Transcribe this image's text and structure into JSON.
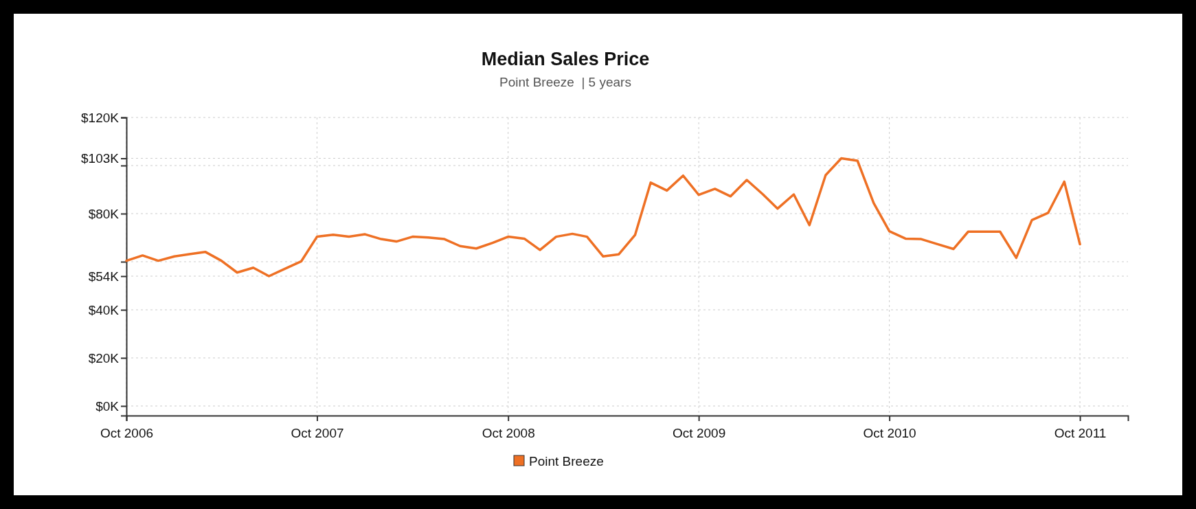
{
  "chart_data": {
    "type": "line",
    "title": "Median Sales Price",
    "subtitle": "Point Breeze  | 5 years",
    "x": [
      "2006-10",
      "2006-11",
      "2006-12",
      "2007-01",
      "2007-02",
      "2007-03",
      "2007-04",
      "2007-05",
      "2007-06",
      "2007-07",
      "2007-08",
      "2007-09",
      "2007-10",
      "2007-11",
      "2007-12",
      "2008-01",
      "2008-02",
      "2008-03",
      "2008-04",
      "2008-05",
      "2008-06",
      "2008-07",
      "2008-08",
      "2008-09",
      "2008-10",
      "2008-11",
      "2008-12",
      "2009-01",
      "2009-02",
      "2009-03",
      "2009-04",
      "2009-05",
      "2009-06",
      "2009-07",
      "2009-08",
      "2009-09",
      "2009-10",
      "2009-11",
      "2009-12",
      "2010-01",
      "2010-02",
      "2010-03",
      "2010-04",
      "2010-05",
      "2010-06",
      "2010-07",
      "2010-08",
      "2010-09",
      "2010-10",
      "2010-11",
      "2010-12",
      "2011-01",
      "2011-02",
      "2011-03",
      "2011-04",
      "2011-05",
      "2011-06",
      "2011-07",
      "2011-08",
      "2011-09",
      "2011-10"
    ],
    "series": [
      {
        "name": "Point Breeze",
        "color": "#ee7024",
        "values": [
          60.4,
          62.6,
          60.4,
          62.2,
          63.2,
          64.1,
          60.4,
          55.5,
          57.5,
          54,
          57.1,
          60.2,
          70.4,
          71.2,
          70.4,
          71.4,
          69.4,
          68.4,
          70.4,
          70.1,
          69.4,
          66.5,
          65.5,
          67.8,
          70.4,
          69.6,
          64.9,
          70.4,
          71.6,
          70.4,
          62.2,
          63.1,
          71.1,
          92.9,
          89.6,
          95.8,
          87.8,
          90.3,
          87.2,
          94,
          88,
          82.1,
          88,
          75.2,
          96,
          103,
          102,
          84.4,
          72.7,
          69.6,
          69.4,
          67.3,
          65.3,
          72.5,
          72.5,
          72.5,
          61.6,
          77.3,
          80.3,
          93.3,
          67.3
        ]
      }
    ],
    "xlim": [
      "2006-10",
      "2012-01"
    ],
    "xticks": [
      {
        "value": "2006-10",
        "label": "Oct 2006"
      },
      {
        "value": "2007-10",
        "label": "Oct 2007"
      },
      {
        "value": "2008-10",
        "label": "Oct 2008"
      },
      {
        "value": "2009-10",
        "label": "Oct 2009"
      },
      {
        "value": "2010-10",
        "label": "Oct 2010"
      },
      {
        "value": "2011-10",
        "label": "Oct 2011"
      }
    ],
    "ylim": [
      -4,
      120
    ],
    "yticks": [
      {
        "value": 0,
        "label": "$0K"
      },
      {
        "value": 20,
        "label": "$20K"
      },
      {
        "value": 40,
        "label": "$40K"
      },
      {
        "value": 54,
        "label": "$54K"
      },
      {
        "value": 60,
        "label": null
      },
      {
        "value": 80,
        "label": "$80K"
      },
      {
        "value": 100,
        "label": null
      },
      {
        "value": 103,
        "label": "$103K"
      },
      {
        "value": 120,
        "label": "$120K"
      }
    ],
    "grid": true,
    "legend": "bottom",
    "marker": "none",
    "line_style": "solid"
  }
}
